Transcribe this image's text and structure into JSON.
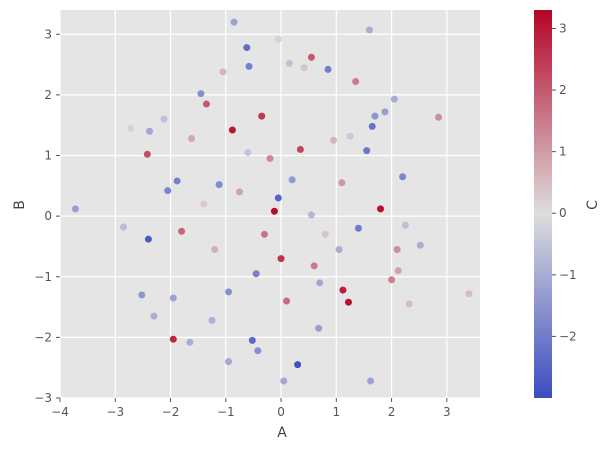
{
  "chart_data": {
    "type": "scatter",
    "title": "",
    "xlabel": "A",
    "ylabel": "B",
    "colorbar_label": "C",
    "colormap": "coolwarm",
    "style": "ggplot",
    "grid": true,
    "xlim": [
      -4.0,
      3.6
    ],
    "ylim": [
      -3.0,
      3.4
    ],
    "clim": [
      -3.0,
      3.3
    ],
    "xticks": [
      -4,
      -3,
      -2,
      -1,
      0,
      1,
      2,
      3
    ],
    "yticks": [
      -3,
      -2,
      -1,
      0,
      1,
      2,
      3
    ],
    "cticks": [
      -2,
      -1,
      0,
      1,
      2,
      3
    ],
    "colors": {
      "background": "#e5e5e5",
      "grid": "#ffffff",
      "cmap_low": "#3b4cc0",
      "cmap_mid": "#dddddd",
      "cmap_high": "#b40426"
    },
    "points": [
      {
        "x": -3.72,
        "y": 0.12,
        "c": -1.3
      },
      {
        "x": -2.85,
        "y": -0.18,
        "c": -0.7
      },
      {
        "x": -2.72,
        "y": 1.45,
        "c": 0.2
      },
      {
        "x": -2.52,
        "y": -1.3,
        "c": -1.5
      },
      {
        "x": -2.42,
        "y": 1.02,
        "c": 2.2
      },
      {
        "x": -2.4,
        "y": -0.38,
        "c": -2.7
      },
      {
        "x": -2.38,
        "y": 1.4,
        "c": -1.1
      },
      {
        "x": -2.3,
        "y": -1.65,
        "c": -1.0
      },
      {
        "x": -2.12,
        "y": 1.6,
        "c": -0.6
      },
      {
        "x": -2.05,
        "y": 0.42,
        "c": -1.8
      },
      {
        "x": -1.95,
        "y": -2.03,
        "c": 2.8
      },
      {
        "x": -1.88,
        "y": 0.58,
        "c": -1.9
      },
      {
        "x": -1.95,
        "y": -1.35,
        "c": -1.2
      },
      {
        "x": -1.8,
        "y": -0.25,
        "c": 1.8
      },
      {
        "x": -1.65,
        "y": -2.08,
        "c": -1.0
      },
      {
        "x": -1.62,
        "y": 1.28,
        "c": 0.8
      },
      {
        "x": -1.45,
        "y": 2.02,
        "c": -1.6
      },
      {
        "x": -1.35,
        "y": 1.85,
        "c": 2.0
      },
      {
        "x": -1.25,
        "y": -1.72,
        "c": -0.9
      },
      {
        "x": -1.12,
        "y": 0.52,
        "c": -1.7
      },
      {
        "x": -1.05,
        "y": 2.38,
        "c": 0.6
      },
      {
        "x": -0.95,
        "y": -2.4,
        "c": -1.1
      },
      {
        "x": -0.88,
        "y": 1.42,
        "c": 3.0
      },
      {
        "x": -0.85,
        "y": 3.2,
        "c": -1.2
      },
      {
        "x": -0.62,
        "y": 2.78,
        "c": -2.3
      },
      {
        "x": -0.58,
        "y": 2.47,
        "c": -1.9
      },
      {
        "x": -0.52,
        "y": -2.05,
        "c": -2.4
      },
      {
        "x": -0.42,
        "y": -2.22,
        "c": -1.6
      },
      {
        "x": -0.35,
        "y": 1.65,
        "c": 2.5
      },
      {
        "x": -0.12,
        "y": 0.08,
        "c": 3.2
      },
      {
        "x": -0.05,
        "y": 2.92,
        "c": 0.2
      },
      {
        "x": 0.05,
        "y": -2.72,
        "c": -1.1
      },
      {
        "x": 0.15,
        "y": 2.52,
        "c": -0.6
      },
      {
        "x": 0.3,
        "y": -2.45,
        "c": -2.9
      },
      {
        "x": 0.42,
        "y": 2.45,
        "c": 0.4
      },
      {
        "x": 0.55,
        "y": 2.62,
        "c": 2.0
      },
      {
        "x": 0.6,
        "y": -0.82,
        "c": 1.5
      },
      {
        "x": 0.68,
        "y": -1.85,
        "c": -1.3
      },
      {
        "x": 0.85,
        "y": 2.42,
        "c": -2.0
      },
      {
        "x": 1.05,
        "y": -0.55,
        "c": -1.0
      },
      {
        "x": 1.12,
        "y": -1.22,
        "c": 2.9
      },
      {
        "x": 1.22,
        "y": -1.42,
        "c": 3.1
      },
      {
        "x": 1.25,
        "y": 1.32,
        "c": -0.4
      },
      {
        "x": 1.35,
        "y": 2.22,
        "c": 1.5
      },
      {
        "x": 1.55,
        "y": 1.08,
        "c": -2.1
      },
      {
        "x": 1.6,
        "y": 3.07,
        "c": -1.0
      },
      {
        "x": 1.62,
        "y": -2.72,
        "c": -1.2
      },
      {
        "x": 1.65,
        "y": 1.48,
        "c": -2.2
      },
      {
        "x": 1.7,
        "y": 1.65,
        "c": -1.5
      },
      {
        "x": 1.8,
        "y": 0.12,
        "c": 3.1
      },
      {
        "x": 1.88,
        "y": 1.72,
        "c": -1.3
      },
      {
        "x": 2.0,
        "y": -1.05,
        "c": 1.4
      },
      {
        "x": 2.05,
        "y": 1.93,
        "c": -1.0
      },
      {
        "x": 2.1,
        "y": -0.55,
        "c": 1.2
      },
      {
        "x": 2.12,
        "y": -0.9,
        "c": 0.9
      },
      {
        "x": 2.2,
        "y": 0.65,
        "c": -1.8
      },
      {
        "x": 2.25,
        "y": -0.15,
        "c": -0.6
      },
      {
        "x": 2.32,
        "y": -1.45,
        "c": 0.5
      },
      {
        "x": 2.52,
        "y": -0.48,
        "c": -1.0
      },
      {
        "x": 2.85,
        "y": 1.63,
        "c": 1.2
      },
      {
        "x": 3.4,
        "y": -1.28,
        "c": 0.5
      },
      {
        "x": 0.55,
        "y": 0.02,
        "c": -0.8
      },
      {
        "x": -0.3,
        "y": -0.3,
        "c": 1.6
      },
      {
        "x": 0.2,
        "y": 0.6,
        "c": -1.4
      },
      {
        "x": -0.75,
        "y": 0.4,
        "c": 0.9
      },
      {
        "x": 0.8,
        "y": -0.3,
        "c": 0.4
      },
      {
        "x": -0.45,
        "y": -0.95,
        "c": -1.9
      },
      {
        "x": 0.35,
        "y": 1.1,
        "c": 2.3
      },
      {
        "x": -1.2,
        "y": -0.55,
        "c": 0.7
      },
      {
        "x": 1.1,
        "y": 0.55,
        "c": 1.1
      },
      {
        "x": 0.0,
        "y": -0.7,
        "c": 2.6
      },
      {
        "x": -0.6,
        "y": 1.05,
        "c": -0.5
      },
      {
        "x": 0.7,
        "y": -1.1,
        "c": -1.1
      },
      {
        "x": -0.2,
        "y": 0.95,
        "c": 1.3
      },
      {
        "x": 1.4,
        "y": -0.2,
        "c": -2.0
      },
      {
        "x": -1.4,
        "y": 0.2,
        "c": 0.3
      },
      {
        "x": 0.1,
        "y": -1.4,
        "c": 1.7
      },
      {
        "x": -0.95,
        "y": -1.25,
        "c": -1.6
      },
      {
        "x": 0.95,
        "y": 1.25,
        "c": 0.6
      },
      {
        "x": -0.05,
        "y": 0.3,
        "c": -2.5
      }
    ]
  }
}
